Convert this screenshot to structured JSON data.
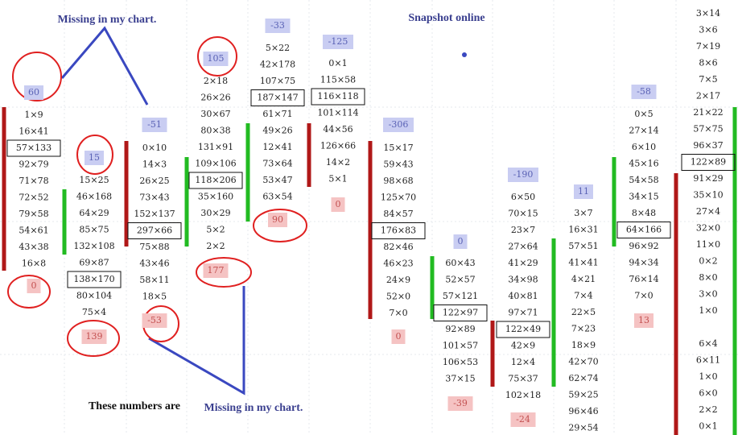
{
  "chart_data": {
    "type": "footprint",
    "annotations": [
      "Missing in my chart.",
      "Snapshot online",
      "These numbers are",
      "Missing in my chart."
    ],
    "columns": [
      {
        "delta": 60,
        "boxed_row": 2,
        "cells": [
          "1×9",
          "16×41",
          "57×133",
          "92×79",
          "71×78",
          "72×52",
          "79×58",
          "54×61",
          "43×38",
          "16×8"
        ],
        "end_delta": 0
      },
      {
        "delta": 15,
        "boxed_row": 6,
        "cells": [
          "15×25",
          "46×168",
          "64×29",
          "85×75",
          "132×108",
          "69×87",
          "138×170",
          "80×104",
          "75×4"
        ],
        "end_delta": 139
      },
      {
        "delta": -51,
        "boxed_row": 5,
        "cells": [
          "0×10",
          "14×3",
          "26×25",
          "73×43",
          "152×137",
          "297×66",
          "75×88",
          "43×46",
          "58×11",
          "18×5"
        ],
        "end_delta": -53
      },
      {
        "delta": 105,
        "boxed_row": 6,
        "cells": [
          "2×18",
          "26×26",
          "30×67",
          "80×38",
          "131×91",
          "109×106",
          "118×206",
          "35×160",
          "30×29",
          "5×2",
          "2×2"
        ],
        "end_delta": 177
      },
      {
        "delta": -33,
        "boxed_row": 3,
        "cells": [
          "5×22",
          "42×178",
          "107×75",
          "187×147",
          "61×71",
          "49×26",
          "12×41",
          "73×64",
          "53×47",
          "63×54"
        ],
        "end_delta": 90
      },
      {
        "delta": -125,
        "boxed_row": 2,
        "cells": [
          "0×1",
          "115×58",
          "116×118",
          "101×114",
          "44×56",
          "126×66",
          "14×2",
          "5×1"
        ],
        "end_delta": 0
      },
      {
        "delta": -306,
        "boxed_row": 5,
        "cells": [
          "15×17",
          "59×43",
          "98×68",
          "125×70",
          "84×57",
          "176×83",
          "82×46",
          "46×23",
          "24×9",
          "52×0",
          "7×0"
        ],
        "end_delta": 0
      },
      {
        "delta": 0,
        "boxed_row": 3,
        "cells": [
          "60×43",
          "52×57",
          "57×121",
          "122×97",
          "92×89",
          "101×57",
          "106×53",
          "37×15"
        ],
        "end_delta": -39
      },
      {
        "delta": -190,
        "boxed_row": 8,
        "cells": [
          "6×50",
          "70×15",
          "23×7",
          "27×64",
          "41×29",
          "34×98",
          "40×81",
          "97×71",
          "122×49",
          "42×9",
          "12×4",
          "75×37",
          "102×18"
        ],
        "end_delta": -24
      },
      {
        "delta": 11,
        "boxed_row": null,
        "cells": [
          "3×7",
          "16×31",
          "57×51",
          "41×41",
          "4×21",
          "7×4",
          "22×5",
          "7×23",
          "18×9",
          "42×70",
          "62×74",
          "59×25",
          "96×46",
          "29×54"
        ],
        "end_delta": null
      },
      {
        "delta": -58,
        "boxed_row": 7,
        "cells": [
          "0×5",
          "27×14",
          "6×10",
          "45×16",
          "54×58",
          "34×15",
          "8×48",
          "64×166",
          "96×92",
          "94×34",
          "76×14",
          "7×0"
        ],
        "end_delta": 13
      },
      {
        "delta": null,
        "boxed_row": 9,
        "cells": [
          "3×14",
          "3×6",
          "7×19",
          "8×6",
          "7×5",
          "2×17",
          "21×22",
          "57×75",
          "96×37",
          "122×89",
          "91×29",
          "35×10",
          "27×4",
          "32×0",
          "11×0",
          "0×2",
          "8×0",
          "3×0",
          "1×0",
          null,
          "6×4",
          "6×11",
          "1×0",
          "6×0",
          "2×2",
          "0×1"
        ],
        "end_delta": null
      }
    ]
  }
}
